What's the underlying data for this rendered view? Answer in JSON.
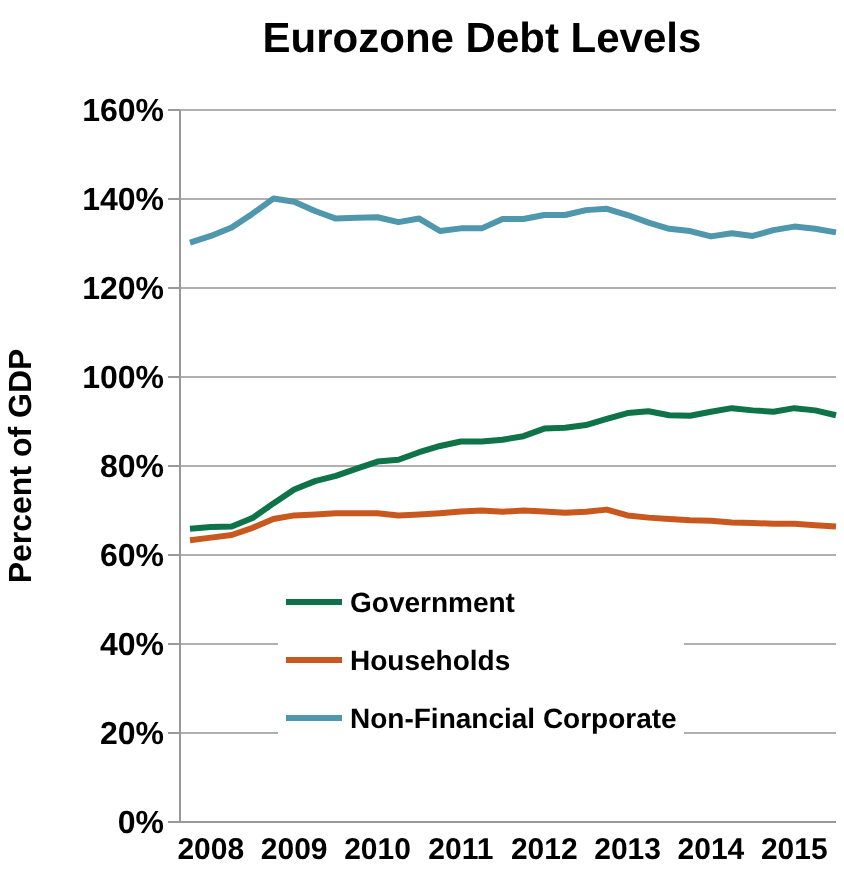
{
  "chart_data": {
    "type": "line",
    "title": "Eurozone Debt Levels",
    "ylabel": "Percent of GDP",
    "categories": [
      null,
      "2008",
      null,
      null,
      null,
      "2009",
      null,
      null,
      null,
      "2010",
      null,
      null,
      null,
      "2011",
      null,
      null,
      null,
      "2012",
      null,
      null,
      null,
      "2013",
      null,
      null,
      null,
      "2014",
      null,
      null,
      null,
      "2015",
      null,
      null
    ],
    "series": [
      {
        "name": "Government",
        "color": "#0e7348",
        "values": [
          65.9,
          66.3,
          66.4,
          68.3,
          71.6,
          74.7,
          76.6,
          77.8,
          79.4,
          81,
          81.4,
          83.1,
          84.5,
          85.5,
          85.5,
          85.9,
          86.7,
          88.4,
          88.6,
          89.2,
          90.6,
          91.9,
          92.3,
          91.4,
          91.3,
          92.2,
          93,
          92.5,
          92.2,
          93,
          92.5,
          91.4
        ]
      },
      {
        "name": "Households",
        "color": "#c9581f",
        "values": [
          63.3,
          63.9,
          64.5,
          66.1,
          68.1,
          68.9,
          69.1,
          69.4,
          69.4,
          69.4,
          68.9,
          69.1,
          69.4,
          69.8,
          70,
          69.7,
          70,
          69.8,
          69.5,
          69.7,
          70.2,
          68.9,
          68.4,
          68.1,
          67.8,
          67.7,
          67.3,
          67.2,
          67,
          67,
          66.7,
          66.4
        ]
      },
      {
        "name": "Non-Financial Corporate",
        "color": "#4e97ac",
        "values": [
          130.2,
          131.7,
          133.6,
          136.7,
          140.1,
          139.4,
          137.3,
          135.6,
          135.8,
          135.9,
          134.8,
          135.6,
          132.8,
          133.4,
          133.4,
          135.5,
          135.5,
          136.4,
          136.4,
          137.5,
          137.8,
          136.4,
          134.7,
          133.3,
          132.8,
          131.6,
          132.3,
          131.7,
          133,
          133.8,
          133.3,
          132.5
        ]
      }
    ],
    "ylim": [
      0,
      160
    ],
    "yticks": [
      {
        "value": 0,
        "label": "0%"
      },
      {
        "value": 20,
        "label": "20%"
      },
      {
        "value": 40,
        "label": "40%"
      },
      {
        "value": 60,
        "label": "60%"
      },
      {
        "value": 80,
        "label": "80%"
      },
      {
        "value": 100,
        "label": "100%"
      },
      {
        "value": 120,
        "label": "120%"
      },
      {
        "value": 140,
        "label": "140%"
      },
      {
        "value": 160,
        "label": "160%"
      }
    ],
    "grid": "y",
    "legend": "bottom",
    "marker": "none",
    "line_style": "solid"
  }
}
